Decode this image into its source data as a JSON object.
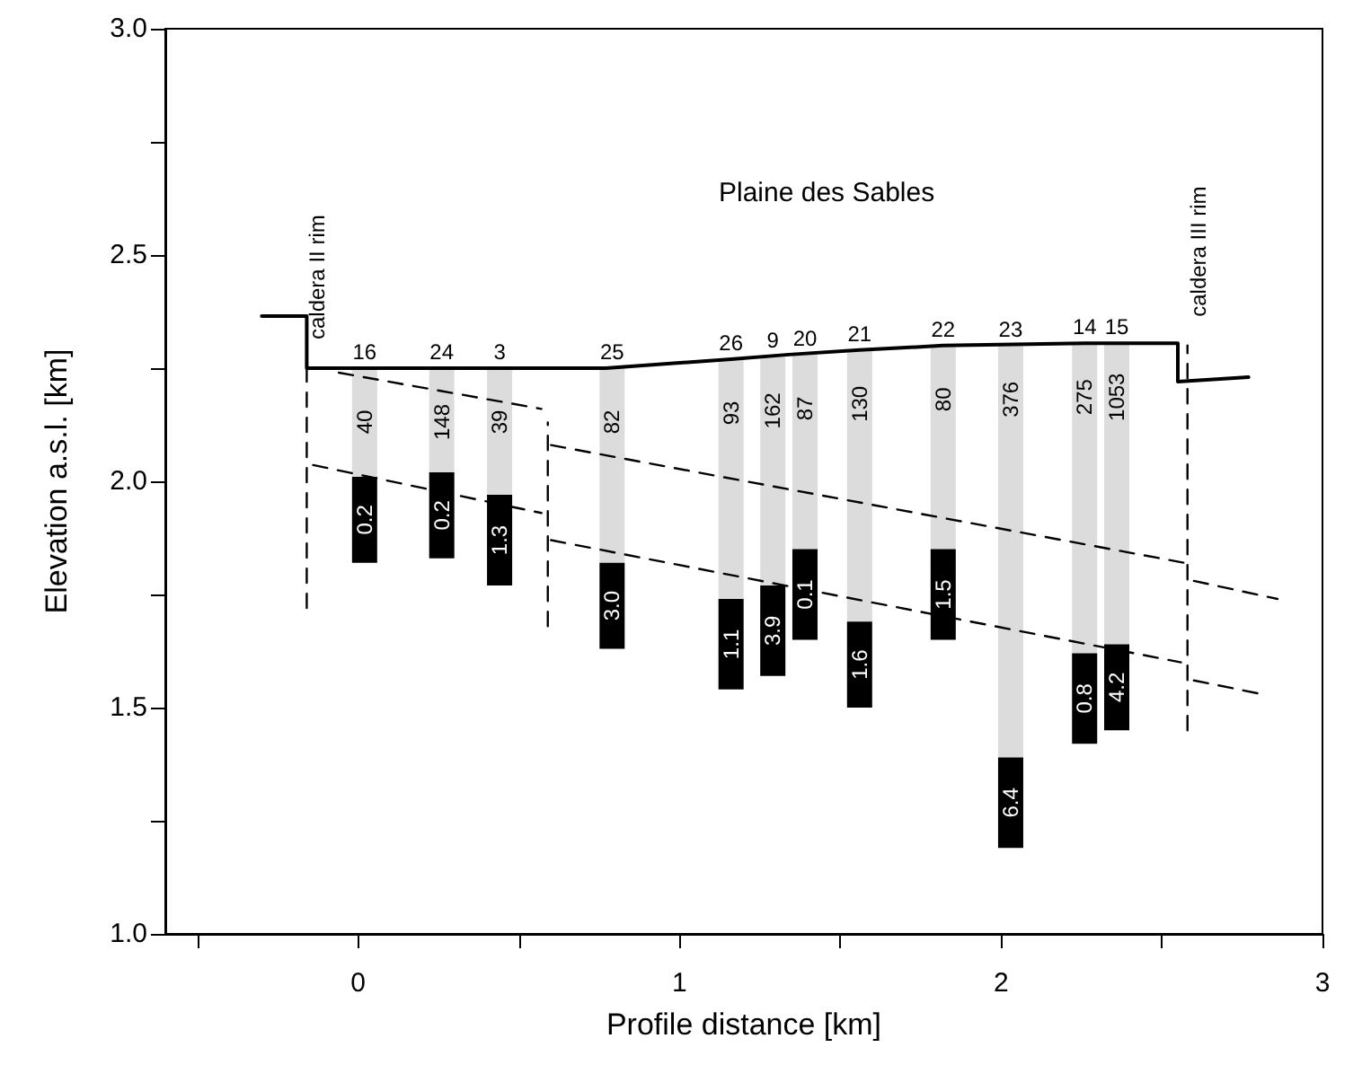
{
  "chart_data": {
    "type": "bar",
    "xlabel": "Profile distance [km]",
    "ylabel": "Elevation a.s.l. [km]",
    "xlim": [
      -0.6,
      3.0
    ],
    "xticks": [
      {
        "value": -0.5,
        "label": null
      },
      0,
      {
        "value": 0.5,
        "label": null
      },
      1,
      {
        "value": 1.5,
        "label": null
      },
      2,
      {
        "value": 2.5,
        "label": null
      },
      3
    ],
    "ylim": [
      1.0,
      3.0
    ],
    "yticks": [
      {
        "value": 1.0,
        "label": "1.0"
      },
      {
        "value": 1.25,
        "label": null
      },
      {
        "value": 1.5,
        "label": "1.5"
      },
      {
        "value": 1.75,
        "label": null
      },
      {
        "value": 2.0,
        "label": "2.0"
      },
      {
        "value": 2.25,
        "label": null
      },
      {
        "value": 2.5,
        "label": "2.5"
      },
      {
        "value": 2.75,
        "label": null
      },
      {
        "value": 3.0,
        "label": "3.0"
      }
    ],
    "annotations": [
      "Plaine des Sables",
      {
        "text": "16",
        "x": 0.02,
        "y": 2.25
      },
      {
        "text": "24",
        "x": 0.26,
        "y": 2.25
      },
      {
        "text": "3",
        "x": 0.44,
        "y": 2.25
      },
      {
        "text": "25",
        "x": 0.79,
        "y": 2.25
      },
      {
        "text": "26",
        "x": 1.16,
        "y": 2.27
      },
      {
        "text": "9",
        "x": 1.29,
        "y": 2.275
      },
      {
        "text": "20",
        "x": 1.39,
        "y": 2.28
      },
      {
        "text": "21",
        "x": 1.56,
        "y": 2.29
      },
      {
        "text": "22",
        "x": 1.82,
        "y": 2.3
      },
      {
        "text": "23",
        "x": 2.03,
        "y": 2.3
      },
      {
        "text": "14",
        "x": 2.26,
        "y": 2.305
      },
      {
        "text": "15",
        "x": 2.36,
        "y": 2.305
      },
      {
        "text": "40",
        "x": 0.02,
        "y": 2.25
      },
      {
        "text": "148",
        "x": 0.26,
        "y": 2.25
      },
      {
        "text": "39",
        "x": 0.44,
        "y": 2.25
      },
      {
        "text": "82",
        "x": 0.79,
        "y": 2.25
      },
      {
        "text": "93",
        "x": 1.16,
        "y": 2.27
      },
      {
        "text": "162",
        "x": 1.29,
        "y": 2.275
      },
      {
        "text": "87",
        "x": 1.39,
        "y": 2.28
      },
      {
        "text": "130",
        "x": 1.56,
        "y": 2.29
      },
      {
        "text": "80",
        "x": 1.82,
        "y": 2.3
      },
      {
        "text": "376",
        "x": 2.03,
        "y": 2.3
      },
      {
        "text": "275",
        "x": 2.26,
        "y": 2.305
      },
      {
        "text": "1053",
        "x": 2.36,
        "y": 2.305
      },
      {
        "text": "0.2",
        "x": 0.02,
        "y": 1.82
      },
      {
        "text": "0.2",
        "x": 0.26,
        "y": 1.83
      },
      {
        "text": "1.3",
        "x": 0.44,
        "y": 1.77
      },
      {
        "text": "3.0",
        "x": 0.79,
        "y": 1.63
      },
      {
        "text": "1.1",
        "x": 1.16,
        "y": 1.54
      },
      {
        "text": "3.9",
        "x": 1.29,
        "y": 1.57
      },
      {
        "text": "0.1",
        "x": 1.39,
        "y": 1.65
      },
      {
        "text": "1.6",
        "x": 1.56,
        "y": 1.5
      },
      {
        "text": "1.5",
        "x": 1.82,
        "y": 1.65
      },
      {
        "text": "6.4",
        "x": 2.03,
        "y": 1.19
      },
      {
        "text": "0.8",
        "x": 2.26,
        "y": 1.42
      },
      {
        "text": "4.2",
        "x": 2.36,
        "y": 1.45
      }
    ],
    "series": [
      {
        "color": "#dcdcdc",
        "x": [
          0.02,
          0.26,
          0.44,
          0.79,
          1.16,
          1.29,
          1.39,
          1.56,
          1.82,
          2.03,
          2.26,
          2.36
        ],
        "base": [
          2.01,
          2.02,
          1.97,
          1.82,
          1.74,
          1.77,
          1.85,
          1.69,
          1.85,
          1.39,
          1.62,
          1.64
        ],
        "values": [
          0.24,
          0.23,
          0.28,
          0.43,
          0.53,
          0.505,
          0.43,
          0.6,
          0.45,
          0.91,
          0.685,
          0.665
        ]
      },
      {
        "color": "#000000",
        "x": [
          0.02,
          0.26,
          0.44,
          0.79,
          1.16,
          1.29,
          1.39,
          1.56,
          1.82,
          2.03,
          2.26,
          2.36
        ],
        "base": [
          1.82,
          1.83,
          1.77,
          1.63,
          1.54,
          1.57,
          1.65,
          1.5,
          1.65,
          1.19,
          1.42,
          1.45
        ],
        "values": [
          0.19,
          0.19,
          0.2,
          0.19,
          0.2,
          0.2,
          0.2,
          0.19,
          0.2,
          0.2,
          0.2,
          0.19
        ]
      },
      {
        "type": "line",
        "color": "#000000",
        "line_style": "solid",
        "x": [
          -0.3,
          -0.16,
          -0.16,
          0.77,
          1.16,
          1.34,
          1.56,
          1.82,
          2.26,
          2.55,
          2.55,
          2.77
        ],
        "values": [
          2.365,
          2.365,
          2.25,
          2.25,
          2.27,
          2.28,
          2.29,
          2.3,
          2.305,
          2.305,
          2.22,
          2.23
        ]
      },
      {
        "type": "line",
        "color": "#000000",
        "line_style": "dashed",
        "x": [
          -0.06,
          0.57,
          0.585,
          0.6,
          2.57,
          2.585,
          2.6,
          2.86
        ],
        "values": [
          2.24,
          2.16,
          null,
          2.08,
          1.82,
          null,
          1.78,
          1.74
        ]
      },
      {
        "type": "line",
        "color": "#000000",
        "line_style": "dashed",
        "x": [
          -0.14,
          0.57,
          0.585,
          0.6,
          2.56,
          2.58,
          2.6,
          2.81
        ],
        "values": [
          2.036,
          1.93,
          null,
          1.87,
          1.6,
          null,
          1.56,
          1.53
        ]
      },
      {
        "type": "line",
        "name": "caldera II rim",
        "color": "#000000",
        "line_style": "dashed",
        "x": [
          -0.16,
          -0.16
        ],
        "values": [
          1.72,
          2.25
        ]
      },
      {
        "type": "line",
        "color": "#000000",
        "line_style": "dashed",
        "x": [
          0.59,
          0.59
        ],
        "values": [
          1.68,
          2.13
        ]
      },
      {
        "type": "line",
        "name": "caldera III rim",
        "color": "#000000",
        "line_style": "dashed",
        "x": [
          2.58,
          2.58
        ],
        "values": [
          1.45,
          2.3
        ]
      }
    ]
  }
}
